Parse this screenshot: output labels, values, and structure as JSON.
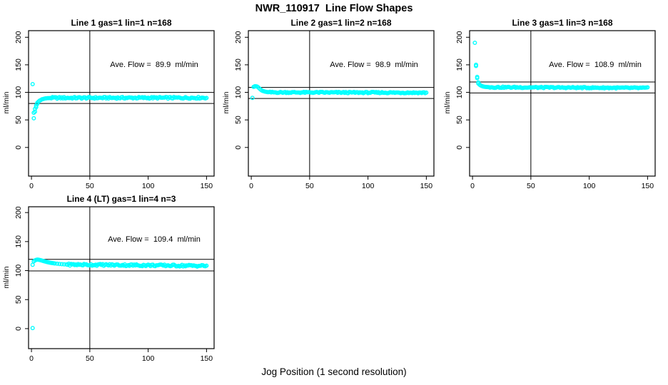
{
  "chart_data": {
    "type": "scatter",
    "title": "NWR_110917  Line Flow Shapes",
    "xlabel": "Jog Position (1 second resolution)",
    "ylabel": "ml/min",
    "x_ticks": [
      0,
      50,
      100,
      150
    ],
    "y_ticks": [
      0,
      50,
      100,
      150,
      200
    ],
    "xlim": [
      -2.5,
      156.5
    ],
    "ylim_top_row": [
      -52,
      212
    ],
    "ylim_bottom_row": [
      -34.5,
      210
    ],
    "grid": false,
    "vline_x": 50,
    "ref_line_offset": 10,
    "marker": {
      "shape": "open-circle",
      "color": "#00FFFF",
      "radius": 2.3
    },
    "axis_color": "#000000",
    "background": "#FFFFFF",
    "panels": [
      {
        "title": "Line 1 gas=1 lin=1 n=168",
        "avg_flow": 89.9,
        "avg_text": "Ave. Flow =  89.9  ml/min",
        "ref_lines": [
          99.9,
          79.9
        ],
        "transient": [
          [
            1,
            115
          ],
          [
            2,
            53
          ],
          [
            2,
            63
          ],
          [
            3,
            65
          ],
          [
            3,
            70
          ],
          [
            4,
            73
          ],
          [
            4,
            76
          ],
          [
            5,
            79
          ],
          [
            5,
            81
          ],
          [
            6,
            83
          ],
          [
            7,
            85
          ],
          [
            8,
            86
          ],
          [
            9,
            87.5
          ],
          [
            10,
            88
          ],
          [
            11,
            88.5
          ],
          [
            12,
            89
          ],
          [
            13,
            89.3
          ],
          [
            14,
            89.6
          ]
        ],
        "steady": {
          "from": 15,
          "to": 150,
          "start": 90,
          "end": 90.2,
          "noise": 1.5
        }
      },
      {
        "title": "Line 2 gas=1 lin=2 n=168",
        "avg_flow": 98.9,
        "avg_text": "Ave. Flow =  98.9  ml/min",
        "ref_lines": [
          108.9,
          88.9
        ],
        "transient": [
          [
            1,
            90
          ],
          [
            2,
            110
          ],
          [
            3,
            110.5
          ],
          [
            3,
            111
          ],
          [
            4,
            111
          ],
          [
            5,
            110.5
          ],
          [
            6,
            109
          ],
          [
            7,
            107
          ],
          [
            8,
            105
          ],
          [
            9,
            103.5
          ],
          [
            10,
            102.5
          ],
          [
            11,
            101.8
          ],
          [
            12,
            101.2
          ],
          [
            13,
            100.8
          ],
          [
            14,
            100.4
          ]
        ],
        "steady": {
          "from": 15,
          "to": 150,
          "start": 100,
          "end": 99.4,
          "noise": 1.1
        }
      },
      {
        "title": "Line 3 gas=1 lin=3 n=168",
        "avg_flow": 108.9,
        "avg_text": "Ave. Flow =  108.9  ml/min",
        "ref_lines": [
          118.9,
          98.9
        ],
        "transient": [
          [
            2,
            190
          ],
          [
            3,
            150
          ],
          [
            3,
            148
          ],
          [
            4,
            128
          ],
          [
            4,
            126
          ],
          [
            5,
            118
          ],
          [
            5,
            116
          ],
          [
            6,
            114
          ],
          [
            7,
            112.5
          ],
          [
            8,
            111.5
          ],
          [
            9,
            110.8
          ],
          [
            10,
            110.3
          ],
          [
            11,
            110
          ],
          [
            12,
            109.8
          ],
          [
            13,
            109.6
          ],
          [
            14,
            109.4
          ]
        ],
        "steady": {
          "from": 15,
          "to": 150,
          "start": 109.3,
          "end": 108,
          "noise": 1.1
        }
      },
      {
        "title": "Line 4 (LT) gas=1 lin=4 n=3",
        "avg_flow": 109.4,
        "avg_text": "Ave. Flow =  109.4  ml/min",
        "ref_lines": [
          119.4,
          99.4
        ],
        "transient": [
          [
            1,
            1
          ],
          [
            1,
            110
          ],
          [
            2,
            116
          ],
          [
            3,
            117.5
          ],
          [
            4,
            118.5
          ],
          [
            5,
            119
          ],
          [
            6,
            118.8
          ],
          [
            7,
            118.3
          ],
          [
            8,
            117.8
          ],
          [
            9,
            117.2
          ],
          [
            10,
            116.6
          ],
          [
            11,
            116
          ],
          [
            12,
            115.5
          ],
          [
            13,
            115
          ],
          [
            14,
            114.5
          ],
          [
            15,
            114
          ],
          [
            16,
            113.6
          ],
          [
            17,
            113.2
          ],
          [
            18,
            112.9
          ],
          [
            19,
            112.6
          ],
          [
            20,
            112.3
          ],
          [
            22,
            111.8
          ],
          [
            24,
            111.4
          ],
          [
            26,
            111.1
          ],
          [
            28,
            110.8
          ],
          [
            30,
            110.6
          ]
        ],
        "steady": {
          "from": 31,
          "to": 150,
          "start": 110.4,
          "end": 108.2,
          "noise": 1.6
        }
      }
    ]
  }
}
